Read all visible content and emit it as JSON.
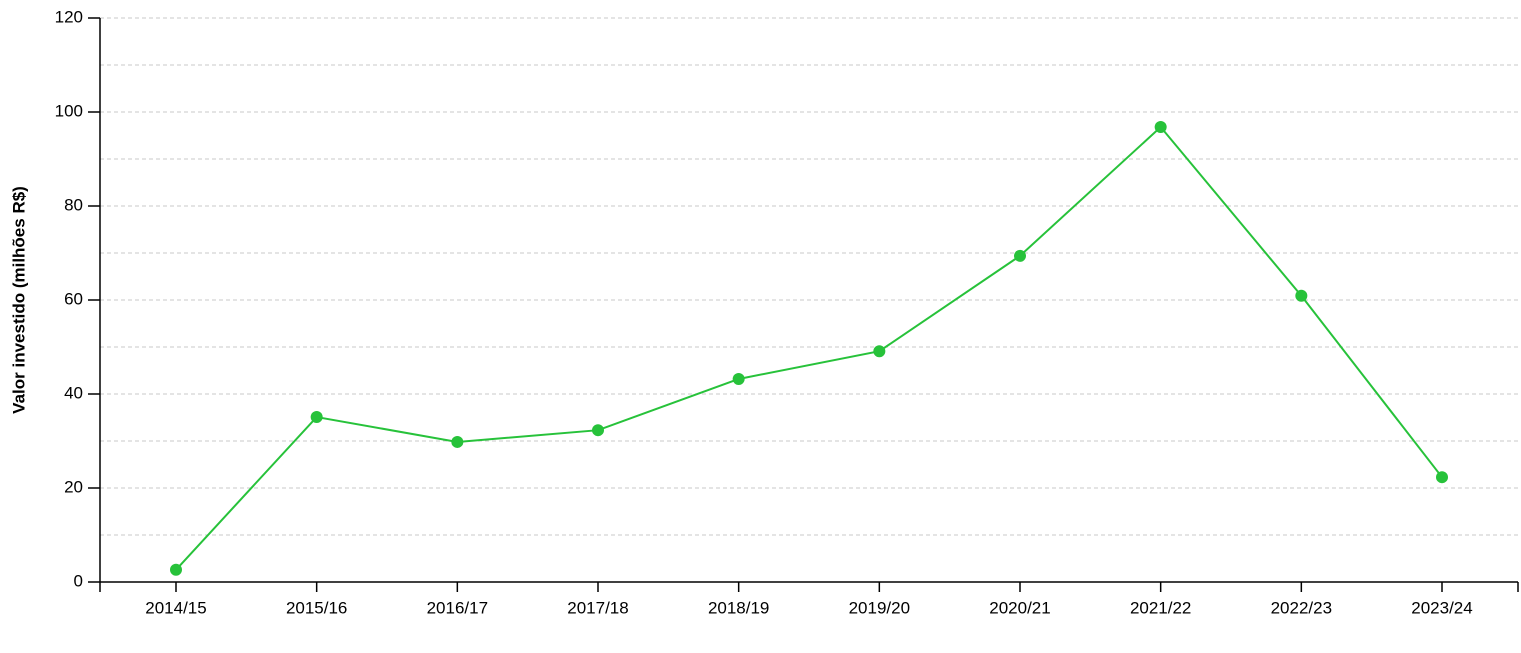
{
  "chart_data": {
    "type": "line",
    "y_label": "Valor investido (milhões R$)",
    "categories": [
      "2014/15",
      "2015/16",
      "2016/17",
      "2017/18",
      "2018/19",
      "2019/20",
      "2020/21",
      "2021/22",
      "2022/23",
      "2023/24"
    ],
    "series": [
      {
        "color": "#27c23a",
        "values": [
          2.6,
          35.1,
          29.8,
          32.3,
          43.2,
          49.1,
          69.4,
          96.8,
          60.9,
          22.3
        ]
      }
    ],
    "ylim": [
      0,
      120
    ],
    "yticks": [
      0,
      20,
      40,
      60,
      80,
      100,
      120
    ],
    "minor_yticks": [
      10,
      30,
      50,
      70,
      90,
      110
    ],
    "grid": true
  }
}
